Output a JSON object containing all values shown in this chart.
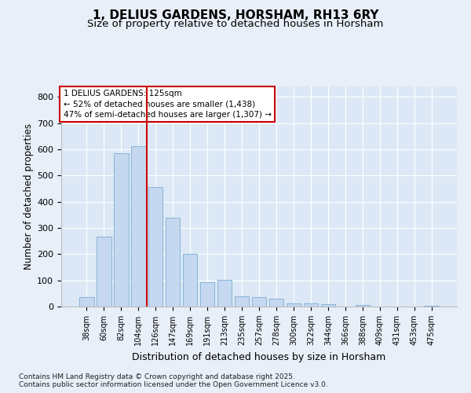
{
  "title1": "1, DELIUS GARDENS, HORSHAM, RH13 6RY",
  "title2": "Size of property relative to detached houses in Horsham",
  "xlabel": "Distribution of detached houses by size in Horsham",
  "ylabel": "Number of detached properties",
  "categories": [
    "38sqm",
    "60sqm",
    "82sqm",
    "104sqm",
    "126sqm",
    "147sqm",
    "169sqm",
    "191sqm",
    "213sqm",
    "235sqm",
    "257sqm",
    "278sqm",
    "300sqm",
    "322sqm",
    "344sqm",
    "366sqm",
    "388sqm",
    "409sqm",
    "431sqm",
    "453sqm",
    "475sqm"
  ],
  "values": [
    37,
    267,
    585,
    612,
    456,
    338,
    202,
    92,
    103,
    38,
    37,
    30,
    12,
    13,
    10,
    0,
    5,
    0,
    0,
    0,
    4
  ],
  "bar_color": "#c5d8f0",
  "bar_edge_color": "#7aadd4",
  "vline_xindex": 4,
  "vline_color": "#cc0000",
  "annotation_line1": "1 DELIUS GARDENS: 125sqm",
  "annotation_line2": "← 52% of detached houses are smaller (1,438)",
  "annotation_line3": "47% of semi-detached houses are larger (1,307) →",
  "ylim": [
    0,
    840
  ],
  "yticks": [
    0,
    100,
    200,
    300,
    400,
    500,
    600,
    700,
    800
  ],
  "footer_text": "Contains HM Land Registry data © Crown copyright and database right 2025.\nContains public sector information licensed under the Open Government Licence v3.0.",
  "bg_color": "#e8eff8",
  "plot_bg_color": "#dce8f5",
  "grid_color": "#ffffff"
}
